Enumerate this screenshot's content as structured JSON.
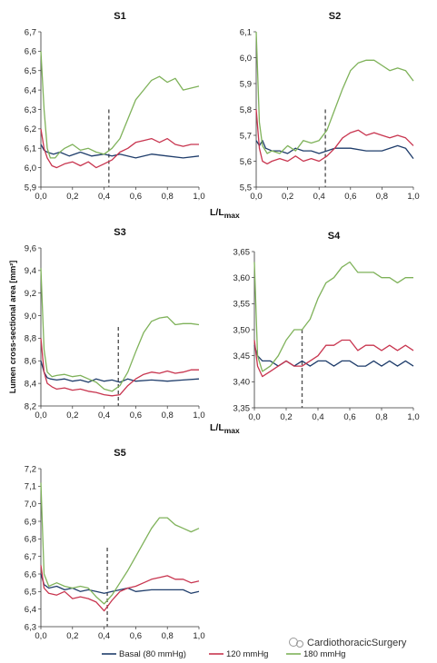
{
  "figure": {
    "y_axis_label": "Lumen cross-sectional area [mm²]",
    "x_axis_label_main": "L/L",
    "x_axis_label_sub": "max",
    "legend": [
      {
        "label": "Basal (80 mmHg)",
        "color": "#1f3d6b"
      },
      {
        "label": "120 mmHg",
        "color": "#c8354f"
      },
      {
        "label": "180 mmHg",
        "color": "#7fb25a"
      }
    ],
    "watermark": "CardiothoracicSurgery",
    "dashed_line_color": "#555555"
  },
  "chart_data": [
    {
      "type": "line",
      "title": "S1",
      "xlim": [
        0,
        1
      ],
      "ylim": [
        5.9,
        6.7
      ],
      "xticks": [
        "0,0",
        "0,2",
        "0,4",
        "0,6",
        "0,8",
        "1,0"
      ],
      "yticks": [
        "5,9",
        "6,0",
        "6,1",
        "6,2",
        "6,3",
        "6,4",
        "6,5",
        "6,6",
        "6,7"
      ],
      "dashed_x": 0.43,
      "dashed_top": 6.3,
      "series": [
        {
          "name": "Basal (80 mmHg)",
          "color": "#1f3d6b",
          "x": [
            0,
            0.02,
            0.04,
            0.08,
            0.12,
            0.18,
            0.25,
            0.32,
            0.4,
            0.45,
            0.5,
            0.6,
            0.7,
            0.8,
            0.9,
            1.0
          ],
          "y": [
            6.12,
            6.09,
            6.08,
            6.07,
            6.08,
            6.06,
            6.08,
            6.06,
            6.07,
            6.06,
            6.07,
            6.05,
            6.07,
            6.06,
            6.05,
            6.06
          ]
        },
        {
          "name": "120 mmHg",
          "color": "#c8354f",
          "x": [
            0,
            0.02,
            0.04,
            0.07,
            0.1,
            0.15,
            0.2,
            0.25,
            0.3,
            0.35,
            0.4,
            0.45,
            0.5,
            0.55,
            0.6,
            0.65,
            0.7,
            0.75,
            0.8,
            0.85,
            0.9,
            0.95,
            1.0
          ],
          "y": [
            6.2,
            6.1,
            6.05,
            6.01,
            6.0,
            6.02,
            6.03,
            6.01,
            6.03,
            6.0,
            6.02,
            6.04,
            6.08,
            6.1,
            6.13,
            6.14,
            6.15,
            6.13,
            6.15,
            6.12,
            6.11,
            6.12,
            6.12
          ]
        },
        {
          "name": "180 mmHg",
          "color": "#7fb25a",
          "x": [
            0,
            0.02,
            0.04,
            0.06,
            0.09,
            0.12,
            0.15,
            0.2,
            0.25,
            0.3,
            0.35,
            0.4,
            0.45,
            0.5,
            0.55,
            0.6,
            0.65,
            0.7,
            0.75,
            0.8,
            0.85,
            0.9,
            0.95,
            1.0
          ],
          "y": [
            6.6,
            6.3,
            6.1,
            6.05,
            6.05,
            6.08,
            6.1,
            6.12,
            6.09,
            6.1,
            6.08,
            6.07,
            6.1,
            6.15,
            6.25,
            6.35,
            6.4,
            6.45,
            6.47,
            6.44,
            6.46,
            6.4,
            6.41,
            6.42
          ]
        }
      ]
    },
    {
      "type": "line",
      "title": "S2",
      "xlim": [
        0,
        1
      ],
      "ylim": [
        5.5,
        6.1
      ],
      "xticks": [
        "0,0",
        "0,2",
        "0,4",
        "0,6",
        "0,8",
        "1,0"
      ],
      "yticks": [
        "5,5",
        "5,6",
        "5,7",
        "5,8",
        "5,9",
        "6,0",
        "6,1"
      ],
      "dashed_x": 0.44,
      "dashed_top": 5.8,
      "series": [
        {
          "name": "Basal (80 mmHg)",
          "color": "#1f3d6b",
          "x": [
            0,
            0.02,
            0.04,
            0.06,
            0.1,
            0.15,
            0.2,
            0.25,
            0.3,
            0.35,
            0.4,
            0.45,
            0.5,
            0.6,
            0.7,
            0.8,
            0.9,
            0.95,
            1.0
          ],
          "y": [
            5.68,
            5.66,
            5.68,
            5.65,
            5.64,
            5.64,
            5.63,
            5.65,
            5.64,
            5.64,
            5.63,
            5.64,
            5.65,
            5.65,
            5.64,
            5.64,
            5.66,
            5.65,
            5.61
          ]
        },
        {
          "name": "120 mmHg",
          "color": "#c8354f",
          "x": [
            0,
            0.02,
            0.04,
            0.07,
            0.1,
            0.15,
            0.2,
            0.25,
            0.3,
            0.35,
            0.4,
            0.45,
            0.5,
            0.55,
            0.6,
            0.65,
            0.7,
            0.75,
            0.8,
            0.85,
            0.9,
            0.95,
            1.0
          ],
          "y": [
            5.8,
            5.65,
            5.6,
            5.59,
            5.6,
            5.61,
            5.6,
            5.62,
            5.6,
            5.61,
            5.6,
            5.62,
            5.65,
            5.69,
            5.71,
            5.72,
            5.7,
            5.71,
            5.7,
            5.69,
            5.7,
            5.69,
            5.66
          ]
        },
        {
          "name": "180 mmHg",
          "color": "#7fb25a",
          "x": [
            0,
            0.02,
            0.04,
            0.07,
            0.1,
            0.15,
            0.2,
            0.25,
            0.3,
            0.35,
            0.4,
            0.45,
            0.5,
            0.55,
            0.6,
            0.65,
            0.7,
            0.75,
            0.8,
            0.85,
            0.9,
            0.95,
            1.0
          ],
          "y": [
            6.1,
            5.75,
            5.66,
            5.63,
            5.64,
            5.63,
            5.66,
            5.64,
            5.68,
            5.67,
            5.68,
            5.72,
            5.8,
            5.88,
            5.95,
            5.98,
            5.99,
            5.99,
            5.97,
            5.95,
            5.96,
            5.95,
            5.91
          ]
        }
      ]
    },
    {
      "type": "line",
      "title": "S3",
      "xlim": [
        0,
        1
      ],
      "ylim": [
        8.2,
        9.6
      ],
      "xticks": [
        "0,0",
        "0,2",
        "0,4",
        "0,6",
        "0,8",
        "1,0"
      ],
      "yticks": [
        "8,2",
        "8,4",
        "8,6",
        "8,8",
        "9,0",
        "9,2",
        "9,4",
        "9,6"
      ],
      "dashed_x": 0.49,
      "dashed_top": 8.9,
      "series": [
        {
          "name": "Basal (80 mmHg)",
          "color": "#1f3d6b",
          "x": [
            0,
            0.02,
            0.04,
            0.06,
            0.1,
            0.15,
            0.2,
            0.25,
            0.3,
            0.35,
            0.4,
            0.45,
            0.5,
            0.55,
            0.6,
            0.7,
            0.8,
            0.9,
            1.0
          ],
          "y": [
            8.6,
            8.5,
            8.45,
            8.44,
            8.43,
            8.44,
            8.42,
            8.43,
            8.41,
            8.44,
            8.42,
            8.43,
            8.41,
            8.44,
            8.42,
            8.43,
            8.42,
            8.43,
            8.44
          ]
        },
        {
          "name": "120 mmHg",
          "color": "#c8354f",
          "x": [
            0,
            0.02,
            0.04,
            0.07,
            0.1,
            0.15,
            0.2,
            0.25,
            0.3,
            0.35,
            0.4,
            0.45,
            0.5,
            0.55,
            0.6,
            0.65,
            0.7,
            0.75,
            0.8,
            0.85,
            0.9,
            0.95,
            1.0
          ],
          "y": [
            8.8,
            8.5,
            8.4,
            8.37,
            8.35,
            8.36,
            8.34,
            8.35,
            8.33,
            8.32,
            8.3,
            8.29,
            8.3,
            8.38,
            8.44,
            8.48,
            8.5,
            8.49,
            8.51,
            8.49,
            8.5,
            8.52,
            8.52
          ]
        },
        {
          "name": "180 mmHg",
          "color": "#7fb25a",
          "x": [
            0,
            0.02,
            0.04,
            0.07,
            0.1,
            0.15,
            0.2,
            0.25,
            0.3,
            0.35,
            0.4,
            0.45,
            0.5,
            0.55,
            0.6,
            0.65,
            0.7,
            0.75,
            0.8,
            0.85,
            0.9,
            0.95,
            1.0
          ],
          "y": [
            9.42,
            8.7,
            8.5,
            8.46,
            8.47,
            8.48,
            8.46,
            8.47,
            8.44,
            8.41,
            8.35,
            8.33,
            8.38,
            8.5,
            8.68,
            8.85,
            8.95,
            8.98,
            8.99,
            8.92,
            8.93,
            8.93,
            8.92
          ]
        }
      ]
    },
    {
      "type": "line",
      "title": "S4",
      "xlim": [
        0,
        1
      ],
      "ylim": [
        3.35,
        3.65
      ],
      "xticks": [
        "0,0",
        "0,2",
        "0,4",
        "0,6",
        "0,8",
        "1,0"
      ],
      "yticks": [
        "3,35",
        "3,40",
        "3,45",
        "3,50",
        "3,55",
        "3,60",
        "3,65"
      ],
      "dashed_x": 0.3,
      "dashed_top": 3.5,
      "series": [
        {
          "name": "Basal (80 mmHg)",
          "color": "#1f3d6b",
          "x": [
            0,
            0.02,
            0.05,
            0.1,
            0.15,
            0.2,
            0.25,
            0.3,
            0.35,
            0.4,
            0.45,
            0.5,
            0.55,
            0.6,
            0.65,
            0.7,
            0.75,
            0.8,
            0.85,
            0.9,
            0.95,
            1.0
          ],
          "y": [
            3.47,
            3.45,
            3.44,
            3.44,
            3.43,
            3.44,
            3.43,
            3.44,
            3.43,
            3.44,
            3.44,
            3.43,
            3.44,
            3.44,
            3.43,
            3.43,
            3.44,
            3.43,
            3.44,
            3.43,
            3.44,
            3.43
          ]
        },
        {
          "name": "120 mmHg",
          "color": "#c8354f",
          "x": [
            0,
            0.02,
            0.05,
            0.1,
            0.15,
            0.2,
            0.25,
            0.3,
            0.35,
            0.4,
            0.45,
            0.5,
            0.55,
            0.6,
            0.65,
            0.7,
            0.75,
            0.8,
            0.85,
            0.9,
            0.95,
            1.0
          ],
          "y": [
            3.48,
            3.43,
            3.41,
            3.42,
            3.43,
            3.44,
            3.43,
            3.43,
            3.44,
            3.45,
            3.47,
            3.47,
            3.48,
            3.48,
            3.46,
            3.47,
            3.47,
            3.46,
            3.47,
            3.46,
            3.47,
            3.46
          ]
        },
        {
          "name": "180 mmHg",
          "color": "#7fb25a",
          "x": [
            0,
            0.02,
            0.05,
            0.1,
            0.15,
            0.2,
            0.25,
            0.3,
            0.35,
            0.4,
            0.45,
            0.5,
            0.55,
            0.6,
            0.65,
            0.7,
            0.75,
            0.8,
            0.85,
            0.9,
            0.95,
            1.0
          ],
          "y": [
            3.63,
            3.45,
            3.42,
            3.43,
            3.45,
            3.48,
            3.5,
            3.5,
            3.52,
            3.56,
            3.59,
            3.6,
            3.62,
            3.63,
            3.61,
            3.61,
            3.61,
            3.6,
            3.6,
            3.59,
            3.6,
            3.6
          ]
        }
      ]
    },
    {
      "type": "line",
      "title": "S5",
      "xlim": [
        0,
        1
      ],
      "ylim": [
        6.3,
        7.2
      ],
      "xticks": [
        "0,0",
        "0,2",
        "0,4",
        "0,6",
        "0,8",
        "1,0"
      ],
      "yticks": [
        "6,3",
        "6,4",
        "6,5",
        "6,6",
        "6,7",
        "6,8",
        "6,9",
        "7,0",
        "7,1",
        "7,2"
      ],
      "dashed_x": 0.42,
      "dashed_top": 6.75,
      "series": [
        {
          "name": "Basal (80 mmHg)",
          "color": "#1f3d6b",
          "x": [
            0,
            0.02,
            0.05,
            0.1,
            0.15,
            0.2,
            0.25,
            0.3,
            0.35,
            0.4,
            0.45,
            0.5,
            0.55,
            0.6,
            0.7,
            0.8,
            0.9,
            0.95,
            1.0
          ],
          "y": [
            6.6,
            6.54,
            6.52,
            6.53,
            6.51,
            6.52,
            6.5,
            6.51,
            6.5,
            6.49,
            6.5,
            6.51,
            6.52,
            6.5,
            6.51,
            6.51,
            6.51,
            6.49,
            6.5
          ]
        },
        {
          "name": "120 mmHg",
          "color": "#c8354f",
          "x": [
            0,
            0.02,
            0.05,
            0.1,
            0.15,
            0.2,
            0.25,
            0.3,
            0.35,
            0.4,
            0.45,
            0.5,
            0.55,
            0.6,
            0.65,
            0.7,
            0.75,
            0.8,
            0.85,
            0.9,
            0.95,
            1.0
          ],
          "y": [
            6.65,
            6.52,
            6.49,
            6.48,
            6.5,
            6.46,
            6.47,
            6.46,
            6.44,
            6.39,
            6.45,
            6.5,
            6.52,
            6.53,
            6.55,
            6.57,
            6.58,
            6.59,
            6.57,
            6.57,
            6.55,
            6.56
          ]
        },
        {
          "name": "180 mmHg",
          "color": "#7fb25a",
          "x": [
            0,
            0.02,
            0.05,
            0.1,
            0.15,
            0.2,
            0.25,
            0.3,
            0.35,
            0.4,
            0.45,
            0.5,
            0.55,
            0.6,
            0.65,
            0.7,
            0.75,
            0.8,
            0.85,
            0.9,
            0.95,
            1.0
          ],
          "y": [
            7.12,
            6.6,
            6.53,
            6.55,
            6.53,
            6.52,
            6.53,
            6.52,
            6.47,
            6.43,
            6.48,
            6.55,
            6.62,
            6.7,
            6.78,
            6.86,
            6.92,
            6.92,
            6.88,
            6.86,
            6.84,
            6.86
          ]
        }
      ]
    }
  ]
}
